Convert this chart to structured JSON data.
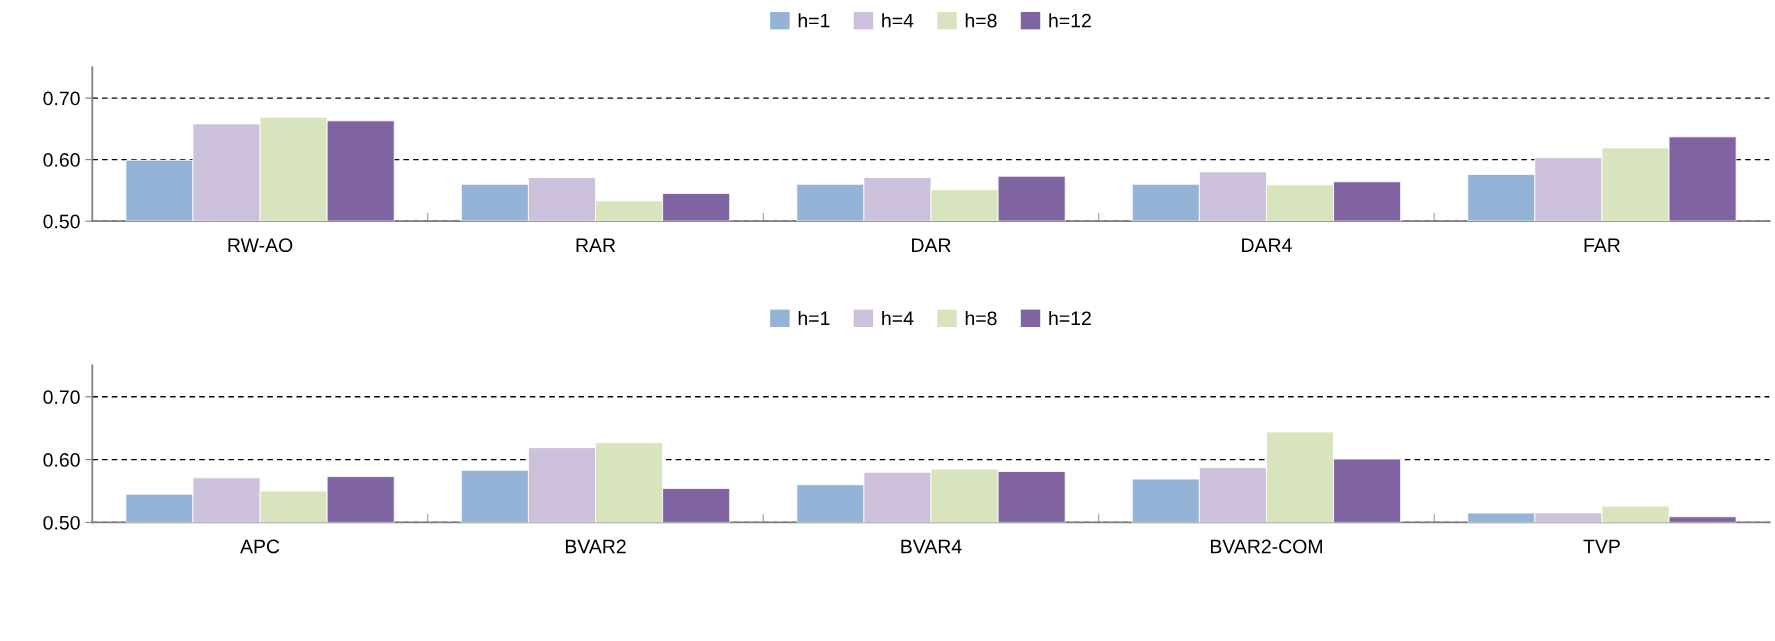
{
  "chart_data": [
    {
      "type": "bar",
      "categories": [
        "RW-AO",
        "RAR",
        "DAR",
        "DAR4",
        "FAR"
      ],
      "series": [
        {
          "name": "h=1",
          "color": "#95b3d7",
          "values": [
            0.599,
            0.56,
            0.56,
            0.56,
            0.576
          ]
        },
        {
          "name": "h=4",
          "color": "#ccc0da",
          "values": [
            0.658,
            0.571,
            0.571,
            0.58,
            0.603
          ]
        },
        {
          "name": "h=8",
          "color": "#d7e4bd",
          "values": [
            0.669,
            0.533,
            0.551,
            0.559,
            0.619
          ]
        },
        {
          "name": "h=12",
          "color": "#8064a2",
          "values": [
            0.663,
            0.545,
            0.573,
            0.564,
            0.637
          ]
        }
      ],
      "ylim": [
        0.5,
        0.75
      ],
      "yticks": [
        {
          "value": 0.5,
          "label": "0.50"
        },
        {
          "value": 0.6,
          "label": "0.60"
        },
        {
          "value": 0.7,
          "label": "0.70"
        }
      ],
      "grid": "y",
      "legend": "top"
    },
    {
      "type": "bar",
      "categories": [
        "APC",
        "BVAR2",
        "BVAR4",
        "BVAR2-COM",
        "TVP"
      ],
      "series": [
        {
          "name": "h=1",
          "color": "#95b3d7",
          "values": [
            0.545,
            0.583,
            0.56,
            0.569,
            0.515
          ]
        },
        {
          "name": "h=4",
          "color": "#ccc0da",
          "values": [
            0.571,
            0.619,
            0.58,
            0.587,
            0.515
          ]
        },
        {
          "name": "h=8",
          "color": "#d7e4bd",
          "values": [
            0.55,
            0.627,
            0.585,
            0.644,
            0.526
          ]
        },
        {
          "name": "h=12",
          "color": "#8064a2",
          "values": [
            0.573,
            0.554,
            0.581,
            0.601,
            0.509
          ]
        }
      ],
      "ylim": [
        0.5,
        0.75
      ],
      "yticks": [
        {
          "value": 0.5,
          "label": "0.50"
        },
        {
          "value": 0.6,
          "label": "0.60"
        },
        {
          "value": 0.7,
          "label": "0.70"
        }
      ],
      "grid": "y",
      "legend": "top"
    }
  ]
}
